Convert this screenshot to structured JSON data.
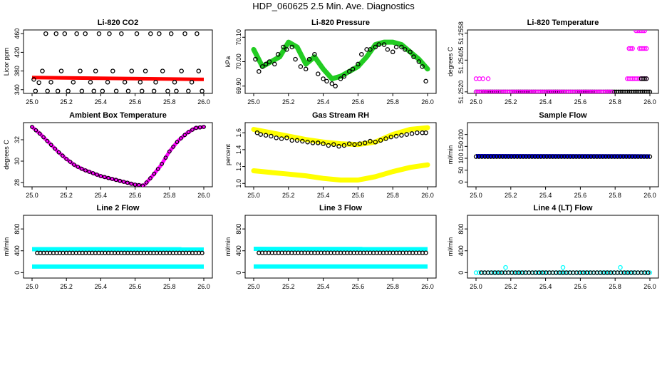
{
  "title": "HDP_060625  2.5 Min. Ave. Diagnostics",
  "colors": {
    "red": "#ff0000",
    "green": "#22cc22",
    "magenta": "#ff00ff",
    "yellow": "#ffff00",
    "blue": "#0000ff",
    "cyan": "#00ffff",
    "black": "#000000"
  },
  "chart_data": [
    {
      "type": "scatter",
      "title": "Li-820 CO2",
      "ylabel": "Licor ppm",
      "xlim": [
        25.0,
        26.0
      ],
      "ylim": [
        332,
        468
      ],
      "xticks": [
        "25.0",
        "25.2",
        "25.4",
        "25.6",
        "25.8",
        "26.0"
      ],
      "yticks": [
        {
          "v": 340,
          "label": "340"
        },
        {
          "v": 380,
          "label": "380"
        },
        {
          "v": 420,
          "label": "420"
        },
        {
          "v": 460,
          "label": "460"
        }
      ],
      "series": [
        {
          "name": "CO2 band",
          "color": "red",
          "style": "band",
          "y0": 366,
          "y1": 362,
          "width": 5
        },
        {
          "name": "CO2 open",
          "color": "black",
          "style": "scatter_open",
          "x": [
            25.01,
            25.02,
            25.04,
            25.06,
            25.08,
            25.09,
            25.11,
            25.14,
            25.15,
            25.17,
            25.19,
            25.21,
            25.24,
            25.26,
            25.28,
            25.29,
            25.31,
            25.34,
            25.36,
            25.37,
            25.39,
            25.41,
            25.44,
            25.45,
            25.47,
            25.49,
            25.52,
            25.54,
            25.56,
            25.58,
            25.61,
            25.63,
            25.64,
            25.66,
            25.69,
            25.71,
            25.72,
            25.74,
            25.76,
            25.79,
            25.81,
            25.83,
            25.84,
            25.87,
            25.89,
            25.91,
            25.93,
            25.96,
            25.97,
            25.99
          ],
          "y": [
            362,
            337,
            355,
            380,
            460,
            337,
            356,
            460,
            337,
            380,
            460,
            337,
            356,
            460,
            380,
            337,
            460,
            356,
            337,
            380,
            460,
            337,
            356,
            460,
            380,
            337,
            460,
            356,
            337,
            380,
            460,
            356,
            337,
            380,
            460,
            337,
            356,
            460,
            380,
            337,
            460,
            356,
            337,
            380,
            460,
            337,
            356,
            460,
            380,
            337
          ]
        }
      ]
    },
    {
      "type": "scatter",
      "title": "Li-820 Pressure",
      "ylabel": "kPa",
      "xlim": [
        25.0,
        26.0
      ],
      "ylim": [
        69.87,
        70.13
      ],
      "xticks": [
        "25.0",
        "25.2",
        "25.4",
        "25.6",
        "25.8",
        "26.0"
      ],
      "yticks": [
        {
          "v": 69.9,
          "label": "69.90"
        },
        {
          "v": 70.0,
          "label": "70.00"
        },
        {
          "v": 70.1,
          "label": "70.10"
        }
      ],
      "series": [
        {
          "name": "Pressure green",
          "color": "green",
          "style": "band_path",
          "width": 7,
          "x": [
            25.0,
            25.05,
            25.1,
            25.15,
            25.2,
            25.25,
            25.3,
            25.35,
            25.4,
            25.45,
            25.5,
            25.55,
            25.6,
            25.65,
            25.7,
            25.75,
            25.8,
            25.85,
            25.9,
            25.95,
            26.0
          ],
          "y": [
            70.05,
            69.98,
            70.0,
            70.02,
            70.08,
            70.06,
            69.99,
            70.02,
            69.97,
            69.93,
            69.94,
            69.96,
            69.98,
            70.02,
            70.07,
            70.08,
            70.08,
            70.07,
            70.04,
            70.01,
            69.97
          ]
        },
        {
          "name": "Pressure black",
          "color": "black",
          "style": "scatter_open",
          "x": [
            25.01,
            25.03,
            25.05,
            25.07,
            25.09,
            25.12,
            25.14,
            25.17,
            25.19,
            25.22,
            25.24,
            25.27,
            25.3,
            25.32,
            25.35,
            25.37,
            25.4,
            25.42,
            25.45,
            25.47,
            25.5,
            25.52,
            25.55,
            25.57,
            25.6,
            25.62,
            25.65,
            25.67,
            25.7,
            25.72,
            25.75,
            25.77,
            25.8,
            25.82,
            25.85,
            25.87,
            25.9,
            25.92,
            25.95,
            25.97,
            25.99
          ],
          "y": [
            70.01,
            69.96,
            69.98,
            69.99,
            70.0,
            69.99,
            70.03,
            70.06,
            70.05,
            70.06,
            70.01,
            69.98,
            69.97,
            70.01,
            70.03,
            69.95,
            69.93,
            69.92,
            69.91,
            69.9,
            69.93,
            69.94,
            69.96,
            69.97,
            69.99,
            70.03,
            70.05,
            70.05,
            70.06,
            70.07,
            70.07,
            70.05,
            70.04,
            70.06,
            70.06,
            70.05,
            70.04,
            70.02,
            70.0,
            69.98,
            69.92
          ]
        }
      ]
    },
    {
      "type": "scatter",
      "title": "Li-820 Temperature",
      "ylabel": "degrees C",
      "xlim": [
        25.0,
        26.0
      ],
      "ylim": [
        51.2519,
        51.256
      ],
      "xticks": [
        "25.0",
        "25.2",
        "25.4",
        "25.6",
        "25.8",
        "26.0"
      ],
      "yticks": [
        {
          "v": 51.252,
          "label": "51.2520"
        },
        {
          "v": 51.25405,
          "label": "51.25405"
        },
        {
          "v": 51.2558,
          "label": "51.2558"
        }
      ],
      "series": [
        {
          "name": "base black",
          "color": "black",
          "style": "row_open",
          "y": 51.252,
          "x0": 25.0,
          "x1": 26.0,
          "n": 95
        },
        {
          "name": "base magenta",
          "color": "magenta",
          "style": "row_open",
          "y": 51.252,
          "x0": 25.0,
          "x1": 25.78,
          "n": 70
        },
        {
          "name": "upper magenta",
          "color": "magenta",
          "style": "scatter_open",
          "x": [
            25.0,
            25.02,
            25.04,
            25.07,
            25.87,
            25.88,
            25.89,
            25.9,
            25.91,
            25.92,
            25.93,
            25.94,
            25.95,
            25.96,
            25.97,
            25.98,
            25.88,
            25.89,
            25.9,
            25.94,
            25.95,
            25.96,
            25.97,
            25.98,
            25.92,
            25.93,
            25.94,
            25.95,
            25.96,
            25.97
          ],
          "y": [
            51.25285,
            51.25285,
            51.25285,
            51.25285,
            51.25285,
            51.25285,
            51.25285,
            51.25285,
            51.25285,
            51.25285,
            51.25285,
            51.25285,
            51.25285,
            51.25285,
            51.25285,
            51.25285,
            51.2548,
            51.2548,
            51.2548,
            51.2548,
            51.2548,
            51.2548,
            51.2548,
            51.2548,
            51.25595,
            51.25595,
            51.25595,
            51.25595,
            51.25595,
            51.25595
          ]
        },
        {
          "name": "upper black",
          "color": "black",
          "style": "scatter_open",
          "x": [
            25.95,
            25.96,
            25.97,
            25.98
          ],
          "y": [
            51.25285,
            51.25285,
            51.25285,
            51.25285
          ]
        }
      ]
    },
    {
      "type": "line",
      "title": "Ambient Box Temperature",
      "ylabel": "degrees C",
      "xlim": [
        25.0,
        26.0
      ],
      "ylim": [
        27.6,
        33.6
      ],
      "xticks": [
        "25.0",
        "25.2",
        "25.4",
        "25.6",
        "25.8",
        "26.0"
      ],
      "yticks": [
        {
          "v": 28,
          "label": "28"
        },
        {
          "v": 30,
          "label": "30"
        },
        {
          "v": 32,
          "label": "32"
        }
      ],
      "series": [
        {
          "name": "Temperature",
          "color": "magenta",
          "style": "band_path",
          "width": 5,
          "x": [
            25.0,
            25.05,
            25.1,
            25.15,
            25.2,
            25.25,
            25.3,
            25.35,
            25.4,
            25.45,
            25.5,
            25.55,
            25.6,
            25.65,
            25.7,
            25.75,
            25.8,
            25.85,
            25.9,
            25.95,
            26.0
          ],
          "y": [
            33.2,
            32.5,
            31.7,
            30.9,
            30.2,
            29.6,
            29.2,
            28.9,
            28.6,
            28.4,
            28.2,
            28.0,
            27.8,
            27.7,
            28.6,
            29.6,
            30.9,
            31.9,
            32.6,
            33.1,
            33.2
          ]
        },
        {
          "name": "Temperature black",
          "color": "black",
          "style": "scatter_open_on_path",
          "n": 46
        }
      ]
    },
    {
      "type": "scatter",
      "title": "Gas Stream RH",
      "ylabel": "percent",
      "xlim": [
        25.0,
        26.0
      ],
      "ylim": [
        0.96,
        1.72
      ],
      "xticks": [
        "25.0",
        "25.2",
        "25.4",
        "25.6",
        "25.8",
        "26.0"
      ],
      "yticks": [
        {
          "v": 1.0,
          "label": "1.0"
        },
        {
          "v": 1.2,
          "label": "1.2"
        },
        {
          "v": 1.4,
          "label": "1.4"
        },
        {
          "v": 1.6,
          "label": "1.6"
        }
      ],
      "series": [
        {
          "name": "RH high",
          "color": "yellow",
          "style": "band_path",
          "width": 7,
          "x": [
            25.0,
            25.1,
            25.2,
            25.3,
            25.4,
            25.5,
            25.6,
            25.7,
            25.8,
            25.9,
            26.0
          ],
          "y": [
            1.64,
            1.6,
            1.56,
            1.52,
            1.49,
            1.47,
            1.46,
            1.49,
            1.58,
            1.64,
            1.66
          ]
        },
        {
          "name": "RH low",
          "color": "yellow",
          "style": "band_path",
          "width": 7,
          "x": [
            25.0,
            25.1,
            25.2,
            25.3,
            25.4,
            25.5,
            25.6,
            25.7,
            25.8,
            25.9,
            26.0
          ],
          "y": [
            1.15,
            1.13,
            1.11,
            1.09,
            1.06,
            1.04,
            1.04,
            1.08,
            1.14,
            1.19,
            1.22
          ]
        },
        {
          "name": "RH black",
          "color": "black",
          "style": "scatter_open",
          "x": [
            25.02,
            25.04,
            25.07,
            25.1,
            25.13,
            25.16,
            25.19,
            25.22,
            25.25,
            25.28,
            25.31,
            25.34,
            25.37,
            25.4,
            25.43,
            25.46,
            25.49,
            25.52,
            25.55,
            25.58,
            25.61,
            25.64,
            25.67,
            25.7,
            25.73,
            25.76,
            25.79,
            25.82,
            25.85,
            25.88,
            25.91,
            25.94,
            25.97,
            25.99
          ],
          "y": [
            1.6,
            1.58,
            1.57,
            1.56,
            1.54,
            1.53,
            1.54,
            1.51,
            1.51,
            1.5,
            1.49,
            1.48,
            1.48,
            1.47,
            1.45,
            1.46,
            1.44,
            1.45,
            1.47,
            1.46,
            1.47,
            1.48,
            1.5,
            1.49,
            1.51,
            1.53,
            1.55,
            1.56,
            1.57,
            1.58,
            1.59,
            1.6,
            1.6,
            1.6
          ]
        }
      ]
    },
    {
      "type": "scatter",
      "title": "Sample Flow",
      "ylabel": "ml/min",
      "xlim": [
        25.0,
        26.0
      ],
      "ylim": [
        -20,
        250
      ],
      "xticks": [
        "25.0",
        "25.2",
        "25.4",
        "25.6",
        "25.8",
        "26.0"
      ],
      "yticks": [
        {
          "v": 0,
          "label": "0"
        },
        {
          "v": 50,
          "label": "50"
        },
        {
          "v": 100,
          "label": "100"
        },
        {
          "v": 150,
          "label": "150"
        },
        {
          "v": 200,
          "label": "200"
        }
      ],
      "series": [
        {
          "name": "Sample flow blue",
          "color": "blue",
          "style": "band",
          "y0": 109,
          "y1": 108,
          "width": 6
        },
        {
          "name": "Sample flow black",
          "color": "black",
          "style": "row_open",
          "y": 107,
          "x0": 25.0,
          "x1": 26.0,
          "n": 60
        }
      ]
    },
    {
      "type": "scatter",
      "title": "Line 2 Flow",
      "ylabel": "ml/min",
      "xlim": [
        25.0,
        26.0
      ],
      "ylim": [
        -100,
        1050
      ],
      "xticks": [
        "25.0",
        "25.2",
        "25.4",
        "25.6",
        "25.8",
        "26.0"
      ],
      "yticks": [
        {
          "v": 0,
          "label": "0"
        },
        {
          "v": 400,
          "label": "400"
        },
        {
          "v": 800,
          "label": "800"
        }
      ],
      "series": [
        {
          "name": "Line 2 high",
          "color": "cyan",
          "style": "band",
          "y0": 430,
          "y1": 428,
          "width": 6
        },
        {
          "name": "Line 2 low",
          "color": "cyan",
          "style": "band",
          "y0": 110,
          "y1": 110,
          "width": 6
        },
        {
          "name": "Line 2 black",
          "color": "black",
          "style": "row_open",
          "y": 360,
          "x0": 25.03,
          "x1": 25.99,
          "n": 52
        }
      ]
    },
    {
      "type": "scatter",
      "title": "Line 3 Flow",
      "ylabel": "ml/min",
      "xlim": [
        25.0,
        26.0
      ],
      "ylim": [
        -100,
        1050
      ],
      "xticks": [
        "25.0",
        "25.2",
        "25.4",
        "25.6",
        "25.8",
        "26.0"
      ],
      "yticks": [
        {
          "v": 0,
          "label": "0"
        },
        {
          "v": 400,
          "label": "400"
        },
        {
          "v": 800,
          "label": "800"
        }
      ],
      "series": [
        {
          "name": "Line 3 high",
          "color": "cyan",
          "style": "band",
          "y0": 435,
          "y1": 432,
          "width": 6
        },
        {
          "name": "Line 3 low",
          "color": "cyan",
          "style": "band",
          "y0": 112,
          "y1": 112,
          "width": 6
        },
        {
          "name": "Line 3 black",
          "color": "black",
          "style": "row_open",
          "y": 362,
          "x0": 25.03,
          "x1": 25.99,
          "n": 52
        }
      ]
    },
    {
      "type": "scatter",
      "title": "Line 4 (LT) Flow",
      "ylabel": "ml/min",
      "xlim": [
        25.0,
        26.0
      ],
      "ylim": [
        -100,
        1050
      ],
      "xticks": [
        "25.0",
        "25.2",
        "25.4",
        "25.6",
        "25.8",
        "26.0"
      ],
      "yticks": [
        {
          "v": 0,
          "label": "0"
        },
        {
          "v": 400,
          "label": "400"
        },
        {
          "v": 800,
          "label": "800"
        }
      ],
      "series": [
        {
          "name": "Line 4 cyan",
          "color": "cyan",
          "style": "row_open",
          "y": 0,
          "x0": 25.0,
          "x1": 26.0,
          "n": 60
        },
        {
          "name": "Line 4 black",
          "color": "black",
          "style": "row_open",
          "y": 0,
          "x0": 25.03,
          "x1": 25.99,
          "n": 50
        },
        {
          "name": "Line 4 spikes",
          "color": "cyan",
          "style": "scatter_open",
          "x": [
            25.17,
            25.5,
            25.83
          ],
          "y": [
            95,
            95,
            95
          ]
        }
      ]
    }
  ]
}
